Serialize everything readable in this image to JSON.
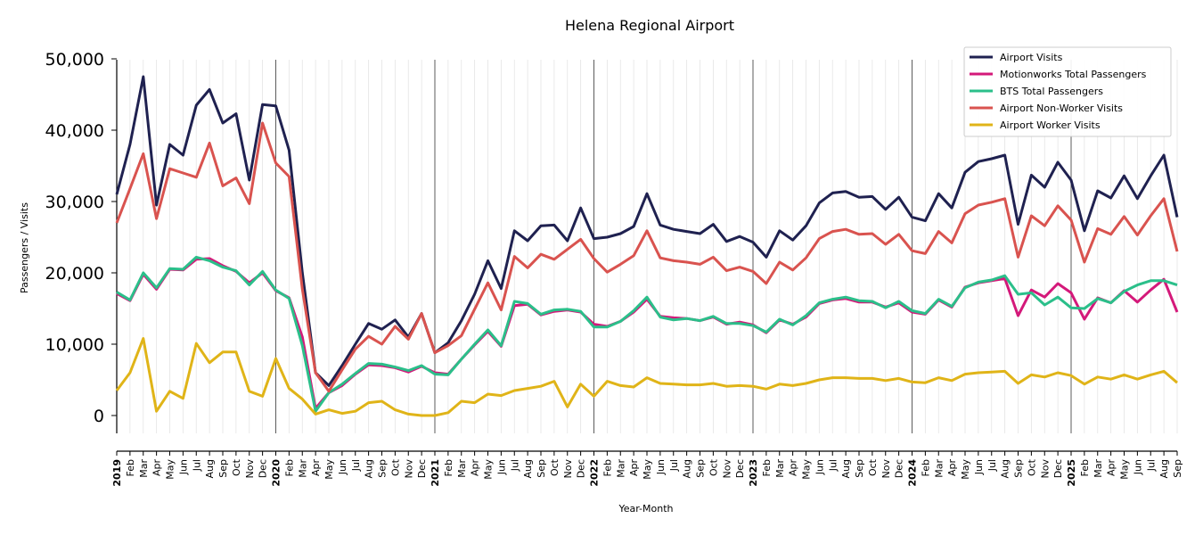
{
  "chart_data": {
    "type": "line",
    "title": "Helena Regional Airport",
    "xlabel": "Year-Month",
    "ylabel": "Passengers / Visits",
    "ylim": [
      -2500,
      50000
    ],
    "yticks": [
      0,
      10000,
      20000,
      30000,
      40000,
      50000
    ],
    "ytick_labels": [
      "0",
      "10,000",
      "20,000",
      "30,000",
      "40,000",
      "50,000"
    ],
    "legend_position": "top-right",
    "grid": "vertical monthly gridlines; darker lines at year boundaries",
    "x": [
      "2019",
      "Feb",
      "Mar",
      "Apr",
      "May",
      "Jun",
      "Jul",
      "Aug",
      "Sep",
      "Oct",
      "Nov",
      "Dec",
      "2020",
      "Feb",
      "Mar",
      "Apr",
      "May",
      "Jun",
      "Jul",
      "Aug",
      "Sep",
      "Oct",
      "Nov",
      "Dec",
      "2021",
      "Feb",
      "Mar",
      "Apr",
      "May",
      "Jun",
      "Jul",
      "Aug",
      "Sep",
      "Oct",
      "Nov",
      "Dec",
      "2022",
      "Feb",
      "Mar",
      "Apr",
      "May",
      "Jun",
      "Jul",
      "Aug",
      "Sep",
      "Oct",
      "Nov",
      "Dec",
      "2023",
      "Feb",
      "Mar",
      "Apr",
      "May",
      "Jun",
      "Jul",
      "Aug",
      "Sep",
      "Oct",
      "Nov",
      "Dec",
      "2024",
      "Feb",
      "Mar",
      "Apr",
      "May",
      "Jun",
      "Jul",
      "Aug",
      "Sep",
      "Oct",
      "Nov",
      "Dec",
      "2025",
      "Feb",
      "Mar",
      "Apr",
      "May",
      "Jun",
      "Jul",
      "Aug",
      "Sep"
    ],
    "series": [
      {
        "name": "Airport Visits",
        "color": "#1f2150",
        "values": [
          31000,
          38000,
          47500,
          29500,
          38000,
          36500,
          43500,
          45700,
          41000,
          42300,
          33000,
          43600,
          43400,
          37200,
          20000,
          6000,
          4200,
          7000,
          10000,
          12900,
          12100,
          13400,
          11000,
          14300,
          8800,
          10200,
          13300,
          17000,
          21700,
          17800,
          25900,
          24500,
          26600,
          26700,
          24500,
          29100,
          24800,
          25000,
          25500,
          26500,
          31100,
          26700,
          26100,
          25800,
          25500,
          26800,
          24400,
          25100,
          24300,
          22200,
          25900,
          24600,
          26600,
          29800,
          31200,
          31400,
          30600,
          30700,
          28900,
          30600,
          27800,
          27300,
          31100,
          29100,
          34100,
          35600,
          36000,
          36500,
          26800,
          33700,
          32000,
          35500,
          33000,
          25900,
          31500,
          30500,
          33600,
          30400,
          33600,
          36500,
          27800
        ]
      },
      {
        "name": "Motionworks Total Passengers",
        "color": "#d4197a",
        "values": [
          17100,
          16100,
          19800,
          17700,
          20500,
          20400,
          21900,
          22000,
          21000,
          20200,
          18600,
          20000,
          17500,
          16500,
          11000,
          1000,
          3200,
          4200,
          5800,
          7100,
          7000,
          6700,
          6100,
          6900,
          6000,
          5800,
          7900,
          9900,
          11800,
          9700,
          15400,
          15600,
          14100,
          14600,
          14800,
          14500,
          12800,
          12500,
          13200,
          14500,
          16300,
          13900,
          13700,
          13600,
          13300,
          13800,
          12800,
          13100,
          12700,
          11600,
          13400,
          12800,
          13800,
          15700,
          16200,
          16400,
          15900,
          15900,
          15200,
          15800,
          14500,
          14200,
          16200,
          15200,
          18000,
          18600,
          18900,
          19200,
          14000,
          17600,
          16600,
          18500,
          17200,
          13500,
          16500,
          15800,
          17500,
          15900,
          17600,
          19100,
          14500
        ]
      },
      {
        "name": "BTS Total Passengers",
        "color": "#2bbf8a",
        "values": [
          17300,
          16200,
          20000,
          17900,
          20600,
          20500,
          22200,
          21700,
          20800,
          20300,
          18300,
          20200,
          17600,
          16400,
          9800,
          600,
          3200,
          4400,
          5900,
          7300,
          7200,
          6800,
          6300,
          7000,
          5800,
          5700,
          7900,
          10000,
          12000,
          9800,
          16000,
          15700,
          14200,
          14800,
          14900,
          14600,
          12400,
          12400,
          13200,
          14700,
          16600,
          13800,
          13400,
          13600,
          13300,
          13900,
          12900,
          12900,
          12600,
          11700,
          13500,
          12700,
          14000,
          15800,
          16300,
          16600,
          16100,
          16000,
          15100,
          16000,
          14700,
          14300,
          16300,
          15300,
          17900,
          18700,
          19000,
          19600,
          17000,
          17200,
          15500,
          16600,
          15100,
          15000,
          16400,
          15800,
          17400,
          18300,
          18900,
          18900,
          18300
        ]
      },
      {
        "name": "Airport Non-Worker Visits",
        "color": "#d9534f",
        "values": [
          27000,
          31800,
          36700,
          27600,
          34600,
          34000,
          33400,
          38200,
          32200,
          33300,
          29700,
          41000,
          35400,
          33500,
          17700,
          6000,
          3400,
          6400,
          9300,
          11100,
          10000,
          12500,
          10700,
          14300,
          8800,
          9800,
          11200,
          14900,
          18600,
          14800,
          22300,
          20700,
          22600,
          21900,
          23300,
          24700,
          22000,
          20100,
          21200,
          22400,
          25900,
          22100,
          21700,
          21500,
          21200,
          22200,
          20300,
          20800,
          20200,
          18500,
          21500,
          20400,
          22100,
          24800,
          25800,
          26100,
          25400,
          25500,
          24000,
          25400,
          23100,
          22700,
          25800,
          24200,
          28300,
          29500,
          29900,
          30400,
          22200,
          28000,
          26600,
          29400,
          27400,
          21500,
          26200,
          25400,
          27900,
          25300,
          28000,
          30400,
          23000
        ]
      },
      {
        "name": "Airport Worker Visits",
        "color": "#e0b418",
        "values": [
          3500,
          6000,
          10800,
          600,
          3400,
          2400,
          10100,
          7400,
          8900,
          8900,
          3400,
          2700,
          8000,
          3800,
          2300,
          200,
          800,
          300,
          600,
          1800,
          2000,
          800,
          200,
          0,
          0,
          400,
          2000,
          1800,
          3000,
          2800,
          3500,
          3800,
          4100,
          4800,
          1200,
          4400,
          2700,
          4800,
          4200,
          4000,
          5300,
          4500,
          4400,
          4300,
          4300,
          4500,
          4100,
          4200,
          4100,
          3700,
          4400,
          4200,
          4500,
          5000,
          5300,
          5300,
          5200,
          5200,
          4900,
          5200,
          4700,
          4600,
          5300,
          4900,
          5800,
          6000,
          6100,
          6200,
          4500,
          5700,
          5400,
          6000,
          5600,
          4400,
          5400,
          5100,
          5700,
          5100,
          5700,
          6200,
          4600
        ]
      }
    ]
  }
}
